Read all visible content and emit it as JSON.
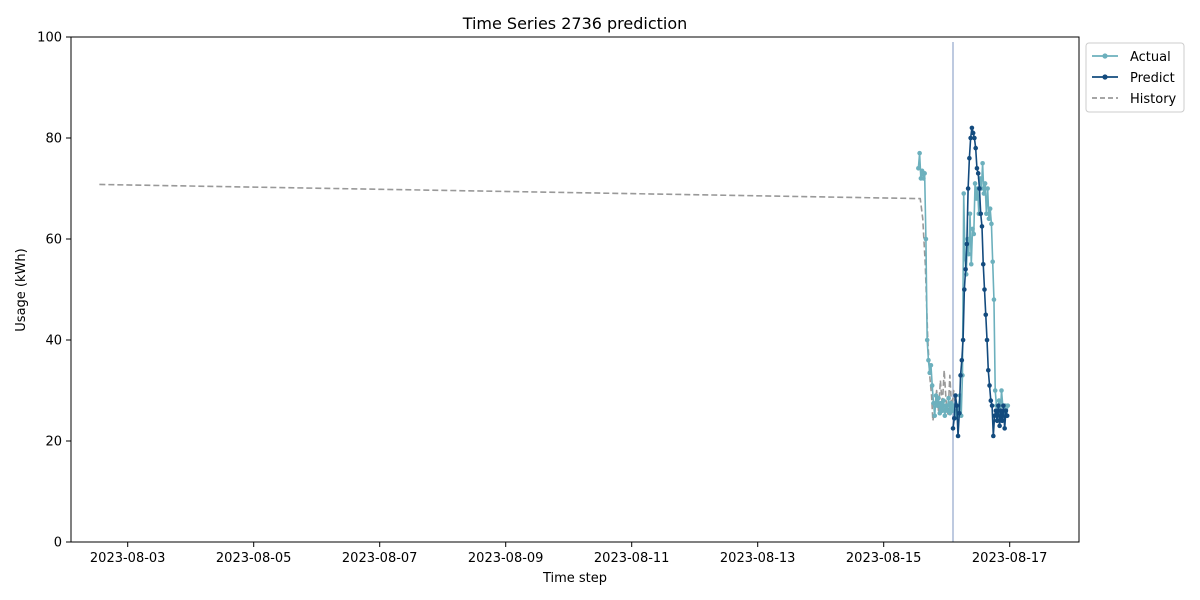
{
  "chart_data": {
    "type": "line",
    "title": "Time Series 2736 prediction",
    "xlabel": "Time step",
    "ylabel": "Usage (kWh)",
    "ylim": [
      0,
      100
    ],
    "xlim_days": [
      -0.9,
      15.1
    ],
    "x_origin_date": "2023-08-03",
    "x_tick_labels": [
      "2023-08-03",
      "2023-08-05",
      "2023-08-07",
      "2023-08-09",
      "2023-08-11",
      "2023-08-13",
      "2023-08-15",
      "2023-08-17"
    ],
    "y_tick_labels": [
      "0",
      "20",
      "40",
      "60",
      "80",
      "100"
    ],
    "prediction_start_day": 13.1,
    "legend": {
      "position": "outside-top-right",
      "entries": [
        "Actual",
        "Predict",
        "History"
      ]
    },
    "colors": {
      "actual": "#6cb0bd",
      "predict": "#134b7e",
      "history": "#999999",
      "divider": "#a9b8d6"
    },
    "series": [
      {
        "name": "History",
        "style": "dashed",
        "points": [
          [
            -0.45,
            70.8
          ],
          [
            12.58,
            68.0
          ],
          [
            12.62,
            64.0
          ],
          [
            12.66,
            55.0
          ],
          [
            12.7,
            40.0
          ],
          [
            12.73,
            33.0
          ],
          [
            12.76,
            29.0
          ],
          [
            12.78,
            24.0
          ],
          [
            12.81,
            26.0
          ],
          [
            12.84,
            30.0
          ],
          [
            12.87,
            26.0
          ],
          [
            12.9,
            32.0
          ],
          [
            12.93,
            27.0
          ],
          [
            12.96,
            34.0
          ],
          [
            12.99,
            28.0
          ],
          [
            13.02,
            25.0
          ],
          [
            13.05,
            33.0
          ],
          [
            13.08,
            26.0
          ],
          [
            13.11,
            30.0
          ],
          [
            13.14,
            27.0
          ]
        ]
      },
      {
        "name": "Actual",
        "style": "solid",
        "points": [
          [
            12.55,
            74.0
          ],
          [
            12.57,
            77.0
          ],
          [
            12.59,
            72.0
          ],
          [
            12.61,
            73.5
          ],
          [
            12.63,
            72.0
          ],
          [
            12.65,
            73.0
          ],
          [
            12.67,
            60.0
          ],
          [
            12.69,
            40.0
          ],
          [
            12.71,
            36.0
          ],
          [
            12.73,
            33.5
          ],
          [
            12.75,
            35.0
          ],
          [
            12.77,
            31.0
          ],
          [
            12.79,
            27.5
          ],
          [
            12.81,
            25.0
          ],
          [
            12.83,
            29.0
          ],
          [
            12.85,
            27.0
          ],
          [
            12.87,
            28.5
          ],
          [
            12.89,
            25.5
          ],
          [
            12.91,
            27.5
          ],
          [
            12.93,
            26.0
          ],
          [
            12.95,
            28.0
          ],
          [
            12.97,
            25.0
          ],
          [
            12.99,
            27.0
          ],
          [
            13.01,
            26.0
          ],
          [
            13.03,
            28.5
          ],
          [
            13.05,
            25.5
          ],
          [
            13.07,
            27.5
          ],
          [
            13.09,
            26.0
          ],
          [
            13.11,
            27.0
          ],
          [
            13.13,
            24.5
          ],
          [
            13.15,
            26.0
          ],
          [
            13.17,
            25.0
          ],
          [
            13.19,
            27.0
          ],
          [
            13.21,
            29.0
          ],
          [
            13.23,
            25.0
          ],
          [
            13.25,
            33.0
          ],
          [
            13.27,
            69.0
          ],
          [
            13.29,
            56.0
          ],
          [
            13.31,
            53.0
          ],
          [
            13.33,
            60.0
          ],
          [
            13.35,
            57.0
          ],
          [
            13.37,
            65.0
          ],
          [
            13.39,
            55.0
          ],
          [
            13.41,
            62.0
          ],
          [
            13.43,
            61.0
          ],
          [
            13.45,
            71.0
          ],
          [
            13.47,
            68.0
          ],
          [
            13.49,
            70.0
          ],
          [
            13.51,
            65.0
          ],
          [
            13.53,
            72.0
          ],
          [
            13.55,
            70.0
          ],
          [
            13.57,
            75.0
          ],
          [
            13.59,
            69.0
          ],
          [
            13.61,
            71.0
          ],
          [
            13.63,
            65.0
          ],
          [
            13.65,
            70.0
          ],
          [
            13.67,
            64.0
          ],
          [
            13.69,
            66.0
          ],
          [
            13.71,
            63.0
          ],
          [
            13.73,
            55.5
          ],
          [
            13.75,
            48.0
          ],
          [
            13.77,
            30.0
          ],
          [
            13.79,
            27.0
          ],
          [
            13.81,
            26.0
          ],
          [
            13.83,
            28.0
          ],
          [
            13.85,
            25.0
          ],
          [
            13.87,
            30.0
          ],
          [
            13.89,
            27.0
          ],
          [
            13.91,
            25.5
          ],
          [
            13.93,
            27.0
          ],
          [
            13.95,
            25.0
          ],
          [
            13.97,
            27.0
          ]
        ]
      },
      {
        "name": "Predict",
        "style": "solid",
        "points": [
          [
            13.1,
            22.5
          ],
          [
            13.12,
            24.5
          ],
          [
            13.14,
            29.0
          ],
          [
            13.16,
            27.0
          ],
          [
            13.18,
            21.0
          ],
          [
            13.2,
            25.5
          ],
          [
            13.22,
            33.0
          ],
          [
            13.24,
            36.0
          ],
          [
            13.26,
            40.0
          ],
          [
            13.28,
            50.0
          ],
          [
            13.3,
            54.0
          ],
          [
            13.32,
            59.0
          ],
          [
            13.34,
            70.0
          ],
          [
            13.36,
            76.0
          ],
          [
            13.38,
            80.0
          ],
          [
            13.4,
            82.0
          ],
          [
            13.42,
            81.0
          ],
          [
            13.44,
            80.0
          ],
          [
            13.46,
            78.0
          ],
          [
            13.48,
            74.0
          ],
          [
            13.5,
            73.0
          ],
          [
            13.52,
            70.0
          ],
          [
            13.54,
            65.0
          ],
          [
            13.56,
            62.5
          ],
          [
            13.58,
            55.0
          ],
          [
            13.6,
            50.0
          ],
          [
            13.62,
            45.0
          ],
          [
            13.64,
            40.0
          ],
          [
            13.66,
            34.0
          ],
          [
            13.68,
            31.0
          ],
          [
            13.7,
            28.0
          ],
          [
            13.72,
            27.0
          ],
          [
            13.74,
            21.0
          ],
          [
            13.76,
            25.0
          ],
          [
            13.78,
            26.0
          ],
          [
            13.8,
            24.0
          ],
          [
            13.82,
            27.0
          ],
          [
            13.84,
            23.0
          ],
          [
            13.86,
            26.0
          ],
          [
            13.88,
            24.0
          ],
          [
            13.9,
            27.0
          ],
          [
            13.92,
            22.5
          ],
          [
            13.94,
            26.0
          ],
          [
            13.96,
            25.0
          ]
        ]
      }
    ]
  }
}
